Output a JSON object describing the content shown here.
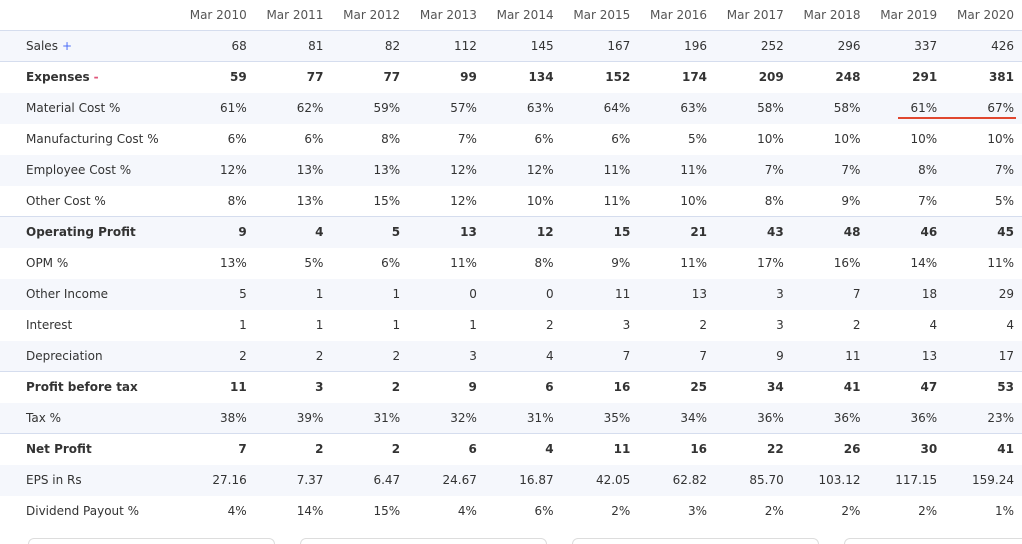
{
  "table": {
    "header": [
      "Mar 2010",
      "Mar 2011",
      "Mar 2012",
      "Mar 2013",
      "Mar 2014",
      "Mar 2015",
      "Mar 2016",
      "Mar 2017",
      "Mar 2018",
      "Mar 2019",
      "Mar 2020"
    ],
    "rows": [
      {
        "label": "Sales",
        "toggle": "+",
        "values": [
          "68",
          "81",
          "82",
          "112",
          "145",
          "167",
          "196",
          "252",
          "296",
          "337",
          "426"
        ]
      },
      {
        "label": "Expenses",
        "toggle": "-",
        "bold": true,
        "values": [
          "59",
          "77",
          "77",
          "99",
          "134",
          "152",
          "174",
          "209",
          "248",
          "291",
          "381"
        ]
      },
      {
        "label": "Material Cost %",
        "values": [
          "61%",
          "62%",
          "59%",
          "57%",
          "63%",
          "64%",
          "63%",
          "58%",
          "58%",
          "61%",
          "67%"
        ]
      },
      {
        "label": "Manufacturing Cost %",
        "values": [
          "6%",
          "6%",
          "8%",
          "7%",
          "6%",
          "6%",
          "5%",
          "10%",
          "10%",
          "10%",
          "10%"
        ]
      },
      {
        "label": "Employee Cost %",
        "values": [
          "12%",
          "13%",
          "13%",
          "12%",
          "12%",
          "11%",
          "11%",
          "7%",
          "7%",
          "8%",
          "7%"
        ]
      },
      {
        "label": "Other Cost %",
        "values": [
          "8%",
          "13%",
          "15%",
          "12%",
          "10%",
          "11%",
          "10%",
          "8%",
          "9%",
          "7%",
          "5%"
        ]
      },
      {
        "label": "Operating Profit",
        "bold": true,
        "values": [
          "9",
          "4",
          "5",
          "13",
          "12",
          "15",
          "21",
          "43",
          "48",
          "46",
          "45"
        ]
      },
      {
        "label": "OPM %",
        "values": [
          "13%",
          "5%",
          "6%",
          "11%",
          "8%",
          "9%",
          "11%",
          "17%",
          "16%",
          "14%",
          "11%"
        ]
      },
      {
        "label": "Other Income",
        "values": [
          "5",
          "1",
          "1",
          "0",
          "0",
          "11",
          "13",
          "3",
          "7",
          "18",
          "29"
        ]
      },
      {
        "label": "Interest",
        "values": [
          "1",
          "1",
          "1",
          "1",
          "2",
          "3",
          "2",
          "3",
          "2",
          "4",
          "4"
        ]
      },
      {
        "label": "Depreciation",
        "values": [
          "2",
          "2",
          "2",
          "3",
          "4",
          "7",
          "7",
          "9",
          "11",
          "13",
          "17"
        ]
      },
      {
        "label": "Profit before tax",
        "bold": true,
        "values": [
          "11",
          "3",
          "2",
          "9",
          "6",
          "16",
          "25",
          "34",
          "41",
          "47",
          "53"
        ]
      },
      {
        "label": "Tax %",
        "values": [
          "38%",
          "39%",
          "31%",
          "32%",
          "31%",
          "35%",
          "34%",
          "36%",
          "36%",
          "36%",
          "23%"
        ]
      },
      {
        "label": "Net Profit",
        "bold": true,
        "values": [
          "7",
          "2",
          "2",
          "6",
          "4",
          "11",
          "16",
          "22",
          "26",
          "30",
          "41"
        ]
      },
      {
        "label": "EPS in Rs",
        "values": [
          "27.16",
          "7.37",
          "6.47",
          "24.67",
          "16.87",
          "42.05",
          "62.82",
          "85.70",
          "103.12",
          "117.15",
          "159.24"
        ]
      },
      {
        "label": "Dividend Payout %",
        "values": [
          "4%",
          "14%",
          "15%",
          "4%",
          "6%",
          "2%",
          "3%",
          "2%",
          "2%",
          "2%",
          "1%"
        ]
      }
    ]
  }
}
